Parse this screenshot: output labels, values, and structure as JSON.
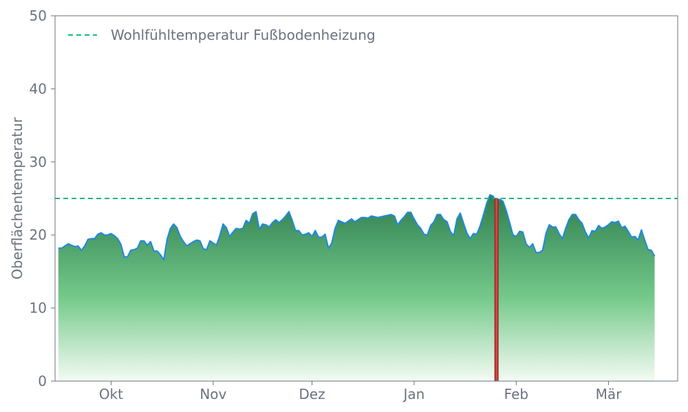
{
  "chart_data": {
    "type": "area",
    "ylabel": "Oberflächentemperatur",
    "xlabel": "",
    "ylim": [
      0,
      50
    ],
    "yticks": [
      0,
      10,
      20,
      30,
      40,
      50
    ],
    "xlim": [
      "2024-09-14",
      "2025-03-22"
    ],
    "xticks": [
      {
        "label": "Okt",
        "date": "2024-10-01"
      },
      {
        "label": "Nov",
        "date": "2024-11-01"
      },
      {
        "label": "Dez",
        "date": "2024-12-01"
      },
      {
        "label": "Jan",
        "date": "2025-01-01"
      },
      {
        "label": "Feb",
        "date": "2025-02-01"
      },
      {
        "label": "Mär",
        "date": "2025-03-01"
      }
    ],
    "series": [
      {
        "start_date": "2024-09-15",
        "values": [
          18.2,
          18.2,
          18.5,
          18.8,
          18.6,
          18.4,
          18.5,
          17.9,
          18.5,
          19.4,
          19.5,
          19.5,
          20.1,
          20.3,
          20.0,
          20.0,
          20.2,
          19.9,
          19.5,
          18.7,
          17.0,
          17.0,
          17.9,
          18.0,
          18.2,
          19.2,
          19.2,
          18.6,
          19.1,
          17.8,
          17.8,
          17.3,
          16.6,
          19.4,
          20.9,
          21.5,
          21.0,
          19.8,
          19.1,
          18.5,
          18.8,
          19.1,
          19.3,
          19.2,
          18.1,
          18.0,
          19.2,
          18.9,
          18.6,
          19.9,
          21.5,
          21.0,
          19.8,
          20.4,
          20.9,
          20.8,
          20.9,
          22.0,
          21.6,
          22.9,
          23.2,
          20.8,
          21.5,
          21.4,
          21.1,
          21.7,
          22.1,
          21.7,
          22.1,
          22.6,
          23.2,
          22.0,
          20.6,
          20.6,
          20.0,
          20.1,
          20.3,
          19.8,
          20.6,
          19.7,
          19.7,
          20.1,
          18.2,
          18.9,
          20.9,
          22.0,
          21.8,
          21.6,
          21.9,
          22.2,
          21.8,
          22.1,
          22.4,
          22.4,
          22.3,
          22.6,
          22.5,
          22.4,
          22.5,
          22.6,
          22.7,
          22.8,
          22.6,
          21.4,
          22.0,
          22.5,
          23.1,
          23.1,
          22.2,
          21.4,
          20.9,
          20.1,
          20.0,
          21.3,
          21.8,
          22.8,
          22.8,
          22.1,
          21.8,
          20.5,
          19.9,
          22.2,
          23.0,
          21.6,
          20.3,
          19.5,
          20.2,
          20.1,
          21.2,
          22.7,
          24.3,
          25.5,
          25.3,
          24.4,
          24.9,
          24.6,
          23.3,
          21.7,
          20.0,
          19.8,
          20.5,
          20.4,
          18.8,
          18.3,
          18.8,
          17.6,
          17.6,
          17.9,
          20.2,
          21.4,
          21.1,
          21.1,
          20.2,
          19.5,
          20.9,
          22.1,
          22.8,
          22.8,
          22.1,
          21.6,
          20.4,
          19.6,
          20.6,
          20.5,
          21.3,
          20.9,
          21.1,
          21.4,
          21.8,
          21.7,
          21.9,
          21.0,
          21.2,
          20.5,
          19.7,
          19.8,
          19.3,
          20.7,
          19.3,
          18.0,
          17.9,
          17.1
        ]
      }
    ],
    "reference_line": {
      "label": "Wohlfühltemperatur Fußbodenheizung",
      "value": 25,
      "color": "#10b981"
    },
    "highlight_bar": {
      "date": "2025-01-26",
      "value": 25,
      "color": "#b91c1c"
    },
    "colors": {
      "line": "#1e88e5",
      "fill_top": "#2e7d4f",
      "fill_mid": "#74c98a",
      "fill_bottom": "#f4fbf4",
      "axis": "#6b7280",
      "text": "#6b7280"
    },
    "grid": false,
    "legend_position": "top-left"
  }
}
